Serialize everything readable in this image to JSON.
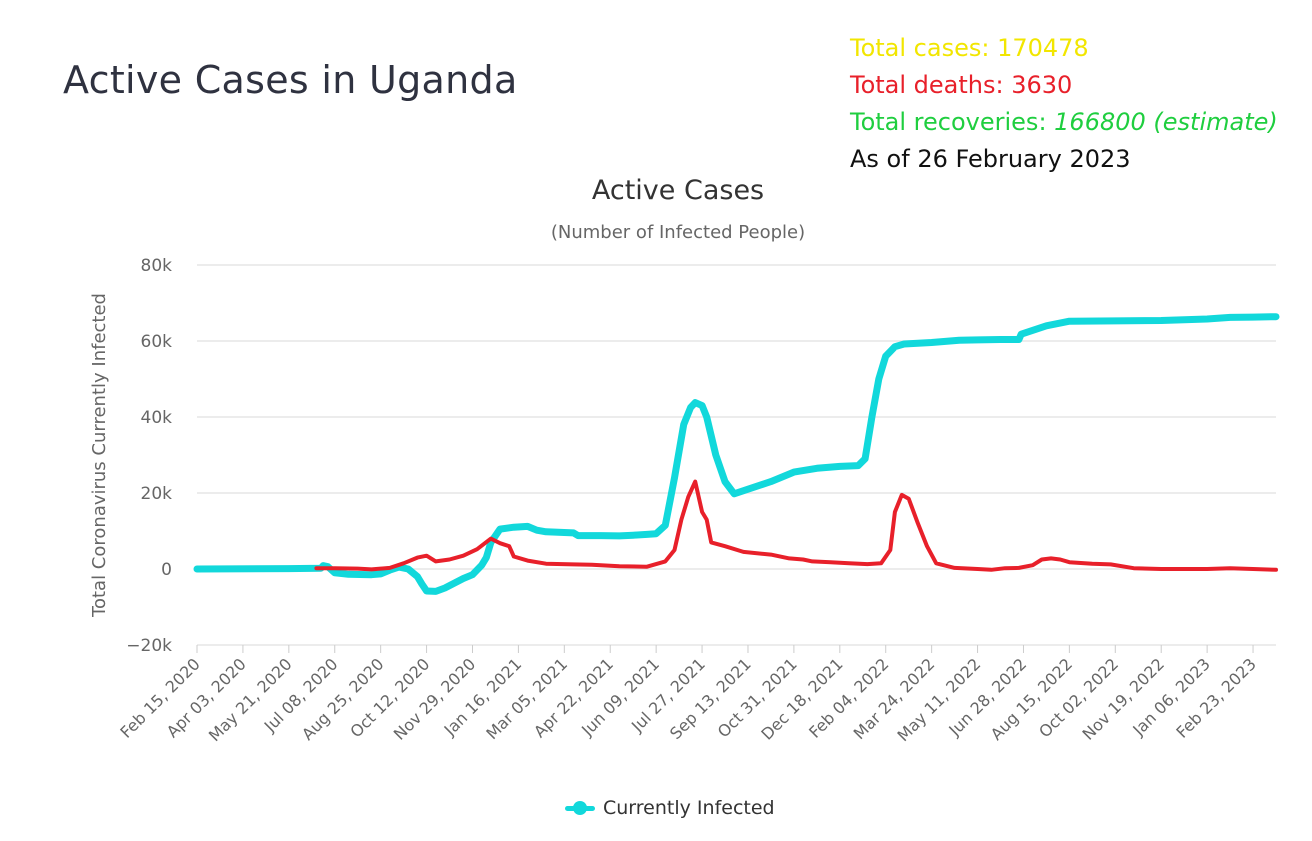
{
  "page": {
    "title": "Active Cases in Uganda"
  },
  "stats": {
    "total_cases_label": "Total cases: 170478",
    "total_deaths_label": "Total deaths: 3630",
    "total_recoveries_prefix": "Total recoveries: ",
    "total_recoveries_value": "166800 (estimate)",
    "as_of": "As of 26 February 2023",
    "colors": {
      "cases": "#f2e600",
      "deaths": "#e8202a",
      "recoveries": "#1fce3f",
      "as_of": "#111111"
    }
  },
  "chart_data": {
    "type": "line",
    "title": "Active Cases",
    "subtitle": "(Number of Infected People)",
    "xlabel": "",
    "ylabel": "Total Coronavirus Currently Infected",
    "ylim": [
      -20000,
      80000
    ],
    "yticks": [
      80000,
      60000,
      40000,
      20000,
      0,
      -20000
    ],
    "ytick_labels": [
      "80k",
      "60k",
      "40k",
      "20k",
      "0",
      "−20k"
    ],
    "x_tick_labels": [
      "Feb 15, 2020",
      "Apr 03, 2020",
      "May 21, 2020",
      "Jul 08, 2020",
      "Aug 25, 2020",
      "Oct 12, 2020",
      "Nov 29, 2020",
      "Jan 16, 2021",
      "Mar 05, 2021",
      "Apr 22, 2021",
      "Jun 09, 2021",
      "Jul 27, 2021",
      "Sep 13, 2021",
      "Oct 31, 2021",
      "Dec 18, 2021",
      "Feb 04, 2022",
      "Mar 24, 2022",
      "May 11, 2022",
      "Jun 28, 2022",
      "Aug 15, 2022",
      "Oct 02, 2022",
      "Nov 19, 2022",
      "Jan 06, 2023",
      "Feb 23, 2023"
    ],
    "x_domain": [
      0,
      23.5
    ],
    "grid": true,
    "legend_position": "bottom-center",
    "series": [
      {
        "name": "Currently Infected",
        "color": "#12d8db",
        "in_legend": true,
        "points": [
          [
            0,
            0
          ],
          [
            2,
            100
          ],
          [
            2.7,
            200
          ],
          [
            2.75,
            900
          ],
          [
            2.85,
            600
          ],
          [
            3,
            -1000
          ],
          [
            3.3,
            -1400
          ],
          [
            3.8,
            -1500
          ],
          [
            4,
            -1300
          ],
          [
            4.2,
            -300
          ],
          [
            4.4,
            500
          ],
          [
            4.6,
            0
          ],
          [
            4.8,
            -2000
          ],
          [
            4.9,
            -4000
          ],
          [
            5.0,
            -5800
          ],
          [
            5.2,
            -5900
          ],
          [
            5.4,
            -5000
          ],
          [
            5.8,
            -2500
          ],
          [
            6.0,
            -1500
          ],
          [
            6.2,
            1000
          ],
          [
            6.3,
            3000
          ],
          [
            6.4,
            7000
          ],
          [
            6.6,
            10500
          ],
          [
            6.9,
            11000
          ],
          [
            7.2,
            11200
          ],
          [
            7.4,
            10200
          ],
          [
            7.6,
            9800
          ],
          [
            8.0,
            9600
          ],
          [
            8.2,
            9500
          ],
          [
            8.3,
            8800
          ],
          [
            8.8,
            8800
          ],
          [
            9.2,
            8700
          ],
          [
            9.5,
            8900
          ],
          [
            9.8,
            9100
          ],
          [
            10.0,
            9300
          ],
          [
            10.2,
            11500
          ],
          [
            10.4,
            24000
          ],
          [
            10.6,
            38000
          ],
          [
            10.75,
            42500
          ],
          [
            10.85,
            43800
          ],
          [
            11.0,
            43000
          ],
          [
            11.1,
            40000
          ],
          [
            11.3,
            30000
          ],
          [
            11.5,
            23000
          ],
          [
            11.7,
            19800
          ],
          [
            12.0,
            21000
          ],
          [
            12.5,
            23000
          ],
          [
            13.0,
            25500
          ],
          [
            13.5,
            26500
          ],
          [
            14.0,
            27000
          ],
          [
            14.4,
            27200
          ],
          [
            14.55,
            29000
          ],
          [
            14.7,
            40000
          ],
          [
            14.85,
            50000
          ],
          [
            15.0,
            56000
          ],
          [
            15.2,
            58500
          ],
          [
            15.4,
            59200
          ],
          [
            16.0,
            59600
          ],
          [
            16.6,
            60200
          ],
          [
            17.0,
            60300
          ],
          [
            17.5,
            60400
          ],
          [
            17.9,
            60400
          ],
          [
            17.95,
            61800
          ],
          [
            18.5,
            64000
          ],
          [
            19.0,
            65200
          ],
          [
            20.0,
            65300
          ],
          [
            21.0,
            65400
          ],
          [
            21.5,
            65600
          ],
          [
            22.0,
            65800
          ],
          [
            22.5,
            66200
          ],
          [
            23.0,
            66300
          ],
          [
            23.5,
            66400
          ]
        ]
      },
      {
        "name": "Deaths overlay",
        "color": "#e8202a",
        "in_legend": false,
        "points": [
          [
            2.6,
            200
          ],
          [
            3.0,
            200
          ],
          [
            3.5,
            100
          ],
          [
            3.8,
            -100
          ],
          [
            4.2,
            300
          ],
          [
            4.5,
            1500
          ],
          [
            4.8,
            3000
          ],
          [
            5.0,
            3500
          ],
          [
            5.2,
            2000
          ],
          [
            5.5,
            2500
          ],
          [
            5.8,
            3500
          ],
          [
            6.1,
            5200
          ],
          [
            6.4,
            8000
          ],
          [
            6.6,
            6800
          ],
          [
            6.8,
            6000
          ],
          [
            6.9,
            3300
          ],
          [
            7.2,
            2200
          ],
          [
            7.6,
            1400
          ],
          [
            8.2,
            1200
          ],
          [
            8.6,
            1100
          ],
          [
            9.2,
            700
          ],
          [
            9.8,
            600
          ],
          [
            10.2,
            2000
          ],
          [
            10.4,
            5000
          ],
          [
            10.55,
            13000
          ],
          [
            10.7,
            19000
          ],
          [
            10.85,
            23000
          ],
          [
            11.0,
            15000
          ],
          [
            11.1,
            13000
          ],
          [
            11.2,
            7000
          ],
          [
            11.5,
            6000
          ],
          [
            11.9,
            4500
          ],
          [
            12.5,
            3800
          ],
          [
            12.9,
            2800
          ],
          [
            13.2,
            2500
          ],
          [
            13.4,
            2000
          ],
          [
            13.8,
            1800
          ],
          [
            14.2,
            1500
          ],
          [
            14.6,
            1300
          ],
          [
            14.9,
            1500
          ],
          [
            15.1,
            5000
          ],
          [
            15.2,
            15000
          ],
          [
            15.35,
            19500
          ],
          [
            15.5,
            18500
          ],
          [
            15.7,
            12000
          ],
          [
            15.9,
            6000
          ],
          [
            16.1,
            1500
          ],
          [
            16.5,
            300
          ],
          [
            17.0,
            0
          ],
          [
            17.3,
            -200
          ],
          [
            17.6,
            200
          ],
          [
            17.9,
            300
          ],
          [
            18.2,
            1000
          ],
          [
            18.4,
            2500
          ],
          [
            18.6,
            2800
          ],
          [
            18.8,
            2500
          ],
          [
            19.0,
            1800
          ],
          [
            19.5,
            1400
          ],
          [
            19.9,
            1200
          ],
          [
            20.4,
            200
          ],
          [
            21.0,
            0
          ],
          [
            22.0,
            0
          ],
          [
            22.5,
            200
          ],
          [
            23.0,
            0
          ],
          [
            23.5,
            -200
          ]
        ]
      }
    ]
  }
}
